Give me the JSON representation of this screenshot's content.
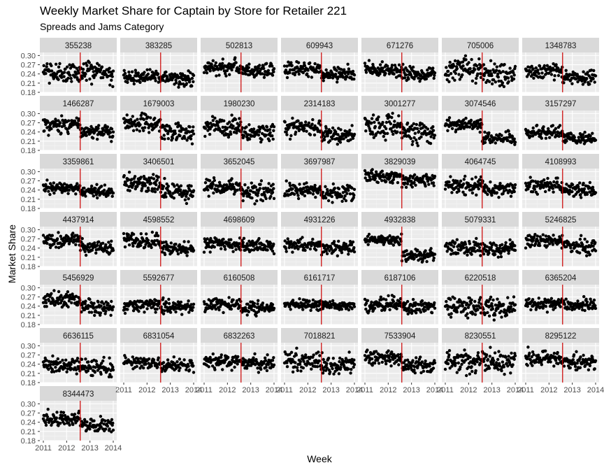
{
  "chart_data": {
    "type": "scatter",
    "title": "Weekly Market Share for Captain by Store for Retailer 221",
    "subtitle": "Spreads and Jams Category",
    "xlabel": "Week",
    "ylabel": "Market Share",
    "x_ticks": [
      "2011",
      "2012",
      "2013",
      "2014"
    ],
    "y_ticks": [
      "0.18",
      "0.21",
      "0.24",
      "0.27",
      "0.30"
    ],
    "ylim": [
      0.18,
      0.31
    ],
    "xlim": [
      "2011-01",
      "2014-01"
    ],
    "reference_line": {
      "x": "2012-08",
      "color": "#cc0000"
    },
    "grid": true,
    "panel_background": "#ebebeb",
    "strip_background": "#d9d9d9",
    "point_color": "#000000",
    "stores": [
      {
        "id": "355238",
        "pre": 0.245,
        "post": 0.24,
        "spread": 0.018
      },
      {
        "id": "383285",
        "pre": 0.235,
        "post": 0.225,
        "spread": 0.012
      },
      {
        "id": "502813",
        "pre": 0.262,
        "post": 0.25,
        "spread": 0.012
      },
      {
        "id": "609943",
        "pre": 0.255,
        "post": 0.24,
        "spread": 0.012
      },
      {
        "id": "671276",
        "pre": 0.255,
        "post": 0.24,
        "spread": 0.012
      },
      {
        "id": "705006",
        "pre": 0.25,
        "post": 0.245,
        "spread": 0.022
      },
      {
        "id": "1348783",
        "pre": 0.25,
        "post": 0.228,
        "spread": 0.012
      },
      {
        "id": "1466287",
        "pre": 0.262,
        "post": 0.24,
        "spread": 0.012
      },
      {
        "id": "1679003",
        "pre": 0.268,
        "post": 0.238,
        "spread": 0.015
      },
      {
        "id": "1980230",
        "pre": 0.258,
        "post": 0.238,
        "spread": 0.015
      },
      {
        "id": "2314183",
        "pre": 0.255,
        "post": 0.232,
        "spread": 0.013
      },
      {
        "id": "3001277",
        "pre": 0.262,
        "post": 0.238,
        "spread": 0.02
      },
      {
        "id": "3074546",
        "pre": 0.263,
        "post": 0.218,
        "spread": 0.01
      },
      {
        "id": "3157297",
        "pre": 0.238,
        "post": 0.22,
        "spread": 0.01
      },
      {
        "id": "3359861",
        "pre": 0.245,
        "post": 0.235,
        "spread": 0.01
      },
      {
        "id": "3406501",
        "pre": 0.262,
        "post": 0.235,
        "spread": 0.015
      },
      {
        "id": "3652045",
        "pre": 0.248,
        "post": 0.238,
        "spread": 0.014
      },
      {
        "id": "3697987",
        "pre": 0.24,
        "post": 0.23,
        "spread": 0.012
      },
      {
        "id": "3829039",
        "pre": 0.285,
        "post": 0.272,
        "spread": 0.01
      },
      {
        "id": "4064745",
        "pre": 0.255,
        "post": 0.24,
        "spread": 0.013
      },
      {
        "id": "4108993",
        "pre": 0.255,
        "post": 0.24,
        "spread": 0.012
      },
      {
        "id": "4437914",
        "pre": 0.265,
        "post": 0.24,
        "spread": 0.012
      },
      {
        "id": "4598552",
        "pre": 0.26,
        "post": 0.238,
        "spread": 0.012
      },
      {
        "id": "4698609",
        "pre": 0.252,
        "post": 0.245,
        "spread": 0.011
      },
      {
        "id": "4931226",
        "pre": 0.25,
        "post": 0.24,
        "spread": 0.01
      },
      {
        "id": "4932838",
        "pre": 0.268,
        "post": 0.215,
        "spread": 0.01
      },
      {
        "id": "5079331",
        "pre": 0.242,
        "post": 0.235,
        "spread": 0.013
      },
      {
        "id": "5246825",
        "pre": 0.265,
        "post": 0.245,
        "spread": 0.012
      },
      {
        "id": "5456929",
        "pre": 0.262,
        "post": 0.238,
        "spread": 0.012
      },
      {
        "id": "5592677",
        "pre": 0.245,
        "post": 0.238,
        "spread": 0.011
      },
      {
        "id": "6160508",
        "pre": 0.245,
        "post": 0.235,
        "spread": 0.01
      },
      {
        "id": "6161717",
        "pre": 0.245,
        "post": 0.24,
        "spread": 0.008
      },
      {
        "id": "6187106",
        "pre": 0.245,
        "post": 0.24,
        "spread": 0.012
      },
      {
        "id": "6220518",
        "pre": 0.238,
        "post": 0.235,
        "spread": 0.016
      },
      {
        "id": "6365204",
        "pre": 0.25,
        "post": 0.245,
        "spread": 0.011
      },
      {
        "id": "6636115",
        "pre": 0.235,
        "post": 0.232,
        "spread": 0.013
      },
      {
        "id": "6831054",
        "pre": 0.245,
        "post": 0.235,
        "spread": 0.01
      },
      {
        "id": "6832263",
        "pre": 0.25,
        "post": 0.243,
        "spread": 0.012
      },
      {
        "id": "7018821",
        "pre": 0.252,
        "post": 0.238,
        "spread": 0.016
      },
      {
        "id": "7533904",
        "pre": 0.26,
        "post": 0.235,
        "spread": 0.012
      },
      {
        "id": "8230551",
        "pre": 0.25,
        "post": 0.245,
        "spread": 0.016
      },
      {
        "id": "8295122",
        "pre": 0.258,
        "post": 0.245,
        "spread": 0.013
      },
      {
        "id": "8344473",
        "pre": 0.25,
        "post": 0.228,
        "spread": 0.012
      }
    ]
  }
}
